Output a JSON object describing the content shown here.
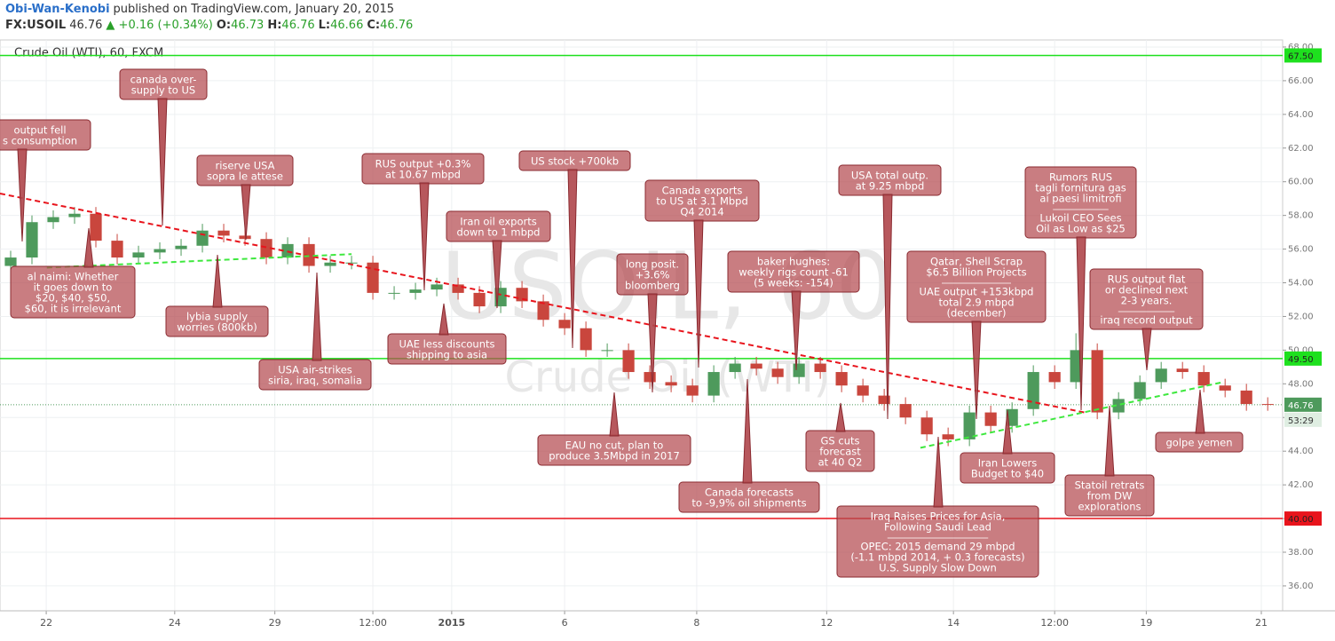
{
  "header": {
    "author": "Obi-Wan-Kenobi",
    "published": "published on TradingView.com, January 20, 2015",
    "symbol": "FX:USOIL",
    "last": "46.76",
    "change": "▲ +0.16 (+0.34%)",
    "ohlc": [
      {
        "label": "O:",
        "value": "46.73"
      },
      {
        "label": "H:",
        "value": "46.76"
      },
      {
        "label": "L:",
        "value": "46.66"
      },
      {
        "label": "C:",
        "value": "46.76"
      }
    ]
  },
  "chart_data": {
    "type": "candlestick",
    "title": "Crude Oil (WTI), 60, FXCM",
    "watermark": [
      "USOIL, 60",
      "Crude Oil (WTI)"
    ],
    "up_color": "#4e9a5c",
    "down_color": "#c9463d",
    "open": [
      55.0,
      55.5,
      57.6,
      57.9,
      58.1,
      56.5,
      55.5,
      55.8,
      56.0,
      56.2,
      57.1,
      56.8,
      56.6,
      55.5,
      56.3,
      55.0,
      55.2,
      55.2,
      53.4,
      53.4,
      53.6,
      53.9,
      53.4,
      52.6,
      53.7,
      52.9,
      51.8,
      51.3,
      50.0,
      50.0,
      48.7,
      48.1,
      47.9,
      47.3,
      48.7,
      49.2,
      48.9,
      48.4,
      49.2,
      48.7,
      47.9,
      47.3,
      46.8,
      46.0,
      45.0,
      44.7,
      46.3,
      45.5,
      46.5,
      48.7,
      48.1,
      50.0,
      46.3,
      47.1,
      48.1,
      48.9,
      48.7,
      47.9,
      47.6,
      46.8
    ],
    "high": [
      55.9,
      58.0,
      58.3,
      58.5,
      58.5,
      56.9,
      56.2,
      56.4,
      56.6,
      57.5,
      57.5,
      57.2,
      57.0,
      56.7,
      56.7,
      55.6,
      55.6,
      55.6,
      53.8,
      54.0,
      54.3,
      54.3,
      53.8,
      54.1,
      54.1,
      53.3,
      52.2,
      51.7,
      50.4,
      50.4,
      49.1,
      48.5,
      48.3,
      49.1,
      49.6,
      49.6,
      49.3,
      49.6,
      49.6,
      49.1,
      48.3,
      47.7,
      47.2,
      46.4,
      45.4,
      46.7,
      46.7,
      46.9,
      49.1,
      49.1,
      51.0,
      50.4,
      47.5,
      48.5,
      49.3,
      49.3,
      49.1,
      48.3,
      48.0,
      47.2
    ],
    "low": [
      54.6,
      55.1,
      57.2,
      57.5,
      56.1,
      55.1,
      55.1,
      55.4,
      55.6,
      55.8,
      56.4,
      56.2,
      55.1,
      55.1,
      54.6,
      54.6,
      54.8,
      53.0,
      53.0,
      53.0,
      53.2,
      53.0,
      52.2,
      52.2,
      52.5,
      51.4,
      50.9,
      49.6,
      49.6,
      48.3,
      47.7,
      47.5,
      46.9,
      46.9,
      48.3,
      48.5,
      48.0,
      48.0,
      48.3,
      47.5,
      46.9,
      46.4,
      45.6,
      44.6,
      44.3,
      44.3,
      45.1,
      45.1,
      46.1,
      47.7,
      47.7,
      45.9,
      45.9,
      46.7,
      47.7,
      48.3,
      47.5,
      47.2,
      46.4,
      46.4
    ],
    "close": [
      55.5,
      57.6,
      57.9,
      58.1,
      56.5,
      55.5,
      55.8,
      56.0,
      56.2,
      57.1,
      56.8,
      56.6,
      55.5,
      56.3,
      55.0,
      55.2,
      55.2,
      53.4,
      53.4,
      53.6,
      53.9,
      53.4,
      52.6,
      53.7,
      52.9,
      51.8,
      51.3,
      50.0,
      50.0,
      48.7,
      48.1,
      47.9,
      47.3,
      48.7,
      49.2,
      48.9,
      48.4,
      49.2,
      48.7,
      47.9,
      47.3,
      46.8,
      46.0,
      45.0,
      44.7,
      46.3,
      45.5,
      46.5,
      48.7,
      48.1,
      50.0,
      46.3,
      47.1,
      48.1,
      48.9,
      48.7,
      47.9,
      47.6,
      46.8,
      46.76
    ],
    "xlim": [
      -0.5,
      59.7
    ],
    "xticks": [
      {
        "value": 1.67,
        "label": "22"
      },
      {
        "value": 7.7,
        "label": "24"
      },
      {
        "value": 12.4,
        "label": "29"
      },
      {
        "value": 17,
        "label": "12:00"
      },
      {
        "value": 20.7,
        "label": "2015",
        "bold": true
      },
      {
        "value": 26,
        "label": "6"
      },
      {
        "value": 32.2,
        "label": "8"
      },
      {
        "value": 38.3,
        "label": "12"
      },
      {
        "value": 44.25,
        "label": "14"
      },
      {
        "value": 49,
        "label": "12:00"
      },
      {
        "value": 53.3,
        "label": "19"
      },
      {
        "value": 58.7,
        "label": "21"
      }
    ],
    "ylim": [
      34.52,
      68.42
    ],
    "yticks": [
      {
        "value": 36,
        "label": "36.00"
      },
      {
        "value": 38,
        "label": "38.00"
      },
      {
        "value": 40,
        "label": "40.00"
      },
      {
        "value": 42,
        "label": "42.00"
      },
      {
        "value": 44,
        "label": "44.00"
      },
      {
        "value": 46,
        "label": "46.00"
      },
      {
        "value": 48,
        "label": "48.00"
      },
      {
        "value": 50,
        "label": "50.00"
      },
      {
        "value": 52,
        "label": "52.00"
      },
      {
        "value": 54,
        "label": "54.00"
      },
      {
        "value": 56,
        "label": "56.00"
      },
      {
        "value": 58,
        "label": "58.00"
      },
      {
        "value": 60,
        "label": "60.00"
      },
      {
        "value": 62,
        "label": "62.00"
      },
      {
        "value": 64,
        "label": "64.00"
      },
      {
        "value": 66,
        "label": "66.00"
      },
      {
        "value": 68,
        "label": "68.00"
      }
    ],
    "grid": true,
    "hlines": [
      {
        "value": 67.5,
        "label": "67.50",
        "color": "#1ee01e"
      },
      {
        "value": 49.5,
        "label": "49.50",
        "color": "#1ee01e"
      },
      {
        "value": 40,
        "label": "40.00",
        "color": "#e8141c"
      }
    ],
    "last_price": {
      "value": 46.76,
      "label": "46.76",
      "color": "#4e9a5c"
    },
    "countdown": "53:29",
    "trendlines": [
      {
        "color": "#e8141c",
        "points": [
          [
            -0.5,
            59.3
          ],
          [
            50.4,
            46.3
          ]
        ]
      },
      {
        "color": "#3ee83e",
        "points": [
          [
            1.7,
            54.9
          ],
          [
            16,
            55.7
          ]
        ]
      },
      {
        "color": "#3ee83e",
        "points": [
          [
            42.7,
            44.2
          ],
          [
            56.9,
            48.1
          ]
        ]
      }
    ],
    "annotations": [
      {
        "lines": [
          "output fell",
          "s consumption"
        ]
      },
      {
        "lines": [
          "canada over-",
          "supply to US"
        ]
      },
      {
        "lines": [
          "riserve USA",
          "sopra le attese"
        ]
      },
      {
        "lines": [
          "RUS output +0.3%",
          "at 10.67 mbpd"
        ]
      },
      {
        "lines": [
          "US stock +700kb"
        ]
      },
      {
        "lines": [
          "Iran oil exports",
          "down to 1 mbpd"
        ]
      },
      {
        "lines": [
          "Canada exports",
          "to US at 3.1 Mbpd",
          "Q4 2014"
        ]
      },
      {
        "lines": [
          "long posit.",
          "+3.6%",
          "bloomberg"
        ]
      },
      {
        "lines": [
          "baker hughes:",
          "weekly rigs count -61",
          "(5  weeks: -154)"
        ]
      },
      {
        "lines": [
          "USA total outp.",
          "at 9.25 mbpd"
        ]
      },
      {
        "lines": [
          "Rumors RUS",
          "tagli fornitura gas",
          "ai paesi limitrofi",
          "Lukoil CEO Sees",
          "Oil as Low as $25"
        ]
      },
      {
        "lines": [
          "Qatar, Shell Scrap",
          "$6.5 Billion Projects",
          "UAE output +153kbpd",
          "total 2.9 mbpd",
          "(december)"
        ]
      },
      {
        "lines": [
          "RUS output flat",
          "or declined next",
          "2-3 years.",
          "iraq record output"
        ]
      },
      {
        "lines": [
          "al naimi: Whether",
          "it goes down to",
          "$20, $40, $50,",
          "$60, it is irrelevant"
        ]
      },
      {
        "lines": [
          "lybia supply",
          "worries (800kb)"
        ]
      },
      {
        "lines": [
          "USA air-strikes",
          "siria, iraq, somalia"
        ]
      },
      {
        "lines": [
          "UAE less discounts",
          "shipping to asia"
        ]
      },
      {
        "lines": [
          "EAU no cut, plan to",
          "produce 3.5Mbpd in 2017"
        ]
      },
      {
        "lines": [
          "Canada forecasts",
          "to -9,9% oil shipments"
        ]
      },
      {
        "lines": [
          "GS cuts",
          "forecast",
          "at 40 Q2"
        ]
      },
      {
        "lines": [
          "Iraq Raises Prices for Asia,",
          "Following Saudi Lead",
          "OPEC: 2015 demand 29 mbpd",
          "(-1.1 mbpd 2014, + 0.3 forecasts)",
          "U.S. Supply Slow Down"
        ]
      },
      {
        "lines": [
          "Iran Lowers",
          "Budget to $40"
        ]
      },
      {
        "lines": [
          "Statoil retrats",
          "from DW",
          "explorations"
        ]
      },
      {
        "lines": [
          "golpe yemen"
        ]
      }
    ]
  }
}
